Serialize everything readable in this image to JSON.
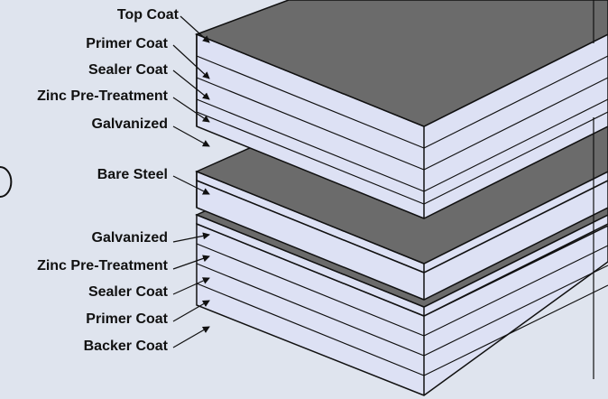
{
  "colors": {
    "background": "#dfe4ee",
    "layer_face": "#dde1f4",
    "layer_top": "#6b6b6b",
    "outline": "#111111"
  },
  "upper_stack": {
    "labels": [
      "Top Coat",
      "Primer Coat",
      "Sealer Coat",
      "Zinc Pre-Treatment",
      "Galvanized"
    ]
  },
  "core": {
    "label": "Bare Steel"
  },
  "lower_stack": {
    "labels": [
      "Galvanized",
      "Zinc Pre-Treatment",
      "Sealer Coat",
      "Primer Coat",
      "Backer Coat"
    ]
  }
}
